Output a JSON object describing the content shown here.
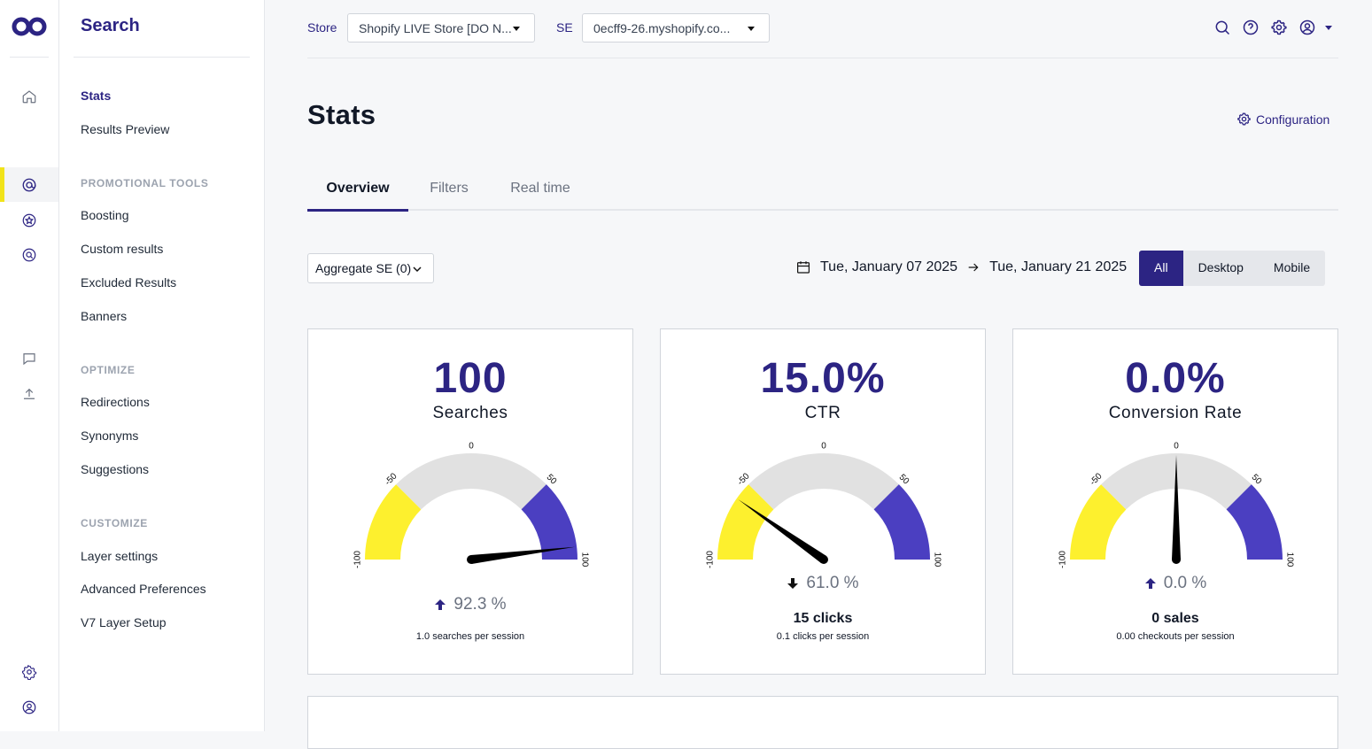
{
  "colors": {
    "brand": "#2c2483",
    "accent_yellow": "#f1e31a",
    "gauge_low": "#fdf02e",
    "gauge_mid": "#e1e1e1",
    "gauge_high": "#4b3fc1"
  },
  "rail": {
    "icons": [
      "logo-icon",
      "home-icon",
      "search-at-icon",
      "star-badge-icon",
      "search-chat-icon",
      "chat-icon",
      "upload-icon",
      "gear-icon",
      "user-icon"
    ]
  },
  "nav": {
    "title": "Search",
    "top_items": [
      {
        "label": "Stats",
        "active": true
      },
      {
        "label": "Results Preview",
        "active": false
      }
    ],
    "sections": [
      {
        "title": "PROMOTIONAL TOOLS",
        "items": [
          "Boosting",
          "Custom results",
          "Excluded Results",
          "Banners"
        ]
      },
      {
        "title": "OPTIMIZE",
        "items": [
          "Redirections",
          "Synonyms",
          "Suggestions"
        ]
      },
      {
        "title": "CUSTOMIZE",
        "items": [
          "Layer settings",
          "Advanced Preferences",
          "V7 Layer Setup"
        ]
      }
    ]
  },
  "topbar": {
    "store_label": "Store",
    "store_value": "Shopify LIVE Store [DO N...",
    "se_label": "SE",
    "se_value": "0ecff9-26.myshopify.co...",
    "icons": [
      "search-icon",
      "help-icon",
      "settings-icon",
      "account-icon"
    ]
  },
  "page": {
    "title": "Stats",
    "config_label": "Configuration",
    "tabs": [
      {
        "label": "Overview",
        "active": true
      },
      {
        "label": "Filters",
        "active": false
      },
      {
        "label": "Real time",
        "active": false
      }
    ],
    "aggregate_label": "Aggregate SE (0)",
    "date_from": "Tue, January 07 2025",
    "date_to": "Tue, January 21 2025",
    "devices": [
      {
        "label": "All",
        "active": true
      },
      {
        "label": "Desktop",
        "active": false
      },
      {
        "label": "Mobile",
        "active": false
      }
    ]
  },
  "gauge_ticks": [
    "-100",
    "-50",
    "0",
    "50",
    "100"
  ],
  "cards": [
    {
      "big": "100",
      "name": "Searches",
      "needle": 92.3,
      "delta": "92.3 %",
      "direction": "up",
      "count": "",
      "per": "1.0 searches per session"
    },
    {
      "big": "15.0%",
      "name": "CTR",
      "needle": -61.0,
      "delta": "61.0 %",
      "direction": "down",
      "count": "15 clicks",
      "per": "0.1 clicks per session"
    },
    {
      "big": "0.0%",
      "name": "Conversion Rate",
      "needle": 0.0,
      "delta": "0.0 %",
      "direction": "up",
      "count": "0 sales",
      "per": "0.00 checkouts per session"
    }
  ]
}
